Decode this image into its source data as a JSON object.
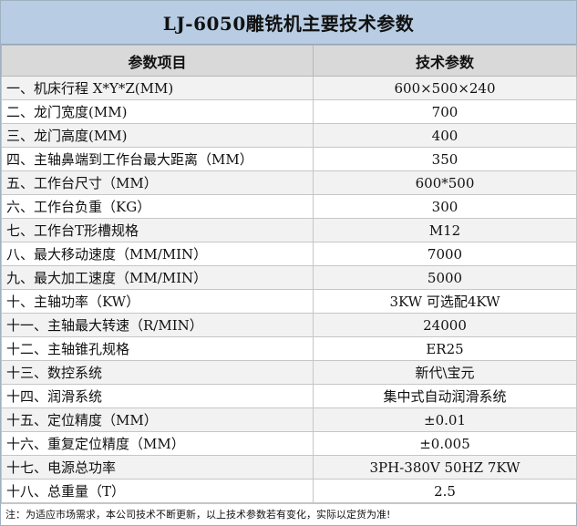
{
  "title": "LJ-6050雕铣机主要技术参数",
  "table": {
    "headers": [
      "参数项目",
      "技术参数"
    ],
    "rows": [
      {
        "name": "一、机床行程 X*Y*Z(MM)",
        "value": "600×500×240"
      },
      {
        "name": "二、龙门宽度(MM)",
        "value": "700"
      },
      {
        "name": "三、龙门高度(MM)",
        "value": "400"
      },
      {
        "name": "四、主轴鼻端到工作台最大距离（MM）",
        "value": "350"
      },
      {
        "name": "五、工作台尺寸（MM）",
        "value": "600*500"
      },
      {
        "name": "六、工作台负重（KG）",
        "value": "300"
      },
      {
        "name": "七、工作台T形槽规格",
        "value": "M12"
      },
      {
        "name": "八、最大移动速度（MM/MIN）",
        "value": "7000"
      },
      {
        "name": "九、最大加工速度（MM/MIN）",
        "value": "5000"
      },
      {
        "name": "十、主轴功率（KW）",
        "value": "3KW 可选配4KW"
      },
      {
        "name": "十一、主轴最大转速（R/MIN）",
        "value": "24000"
      },
      {
        "name": "十二、主轴锥孔规格",
        "value": "ER25"
      },
      {
        "name": "十三、数控系统",
        "value": "新代\\宝元"
      },
      {
        "name": "十四、润滑系统",
        "value": "集中式自动润滑系统"
      },
      {
        "name": "十五、定位精度（MM）",
        "value": "±0.01"
      },
      {
        "name": "十六、重复定位精度（MM）",
        "value": "±0.005"
      },
      {
        "name": "十七、电源总功率",
        "value": "3PH-380V 50HZ 7KW"
      },
      {
        "name": "十八、总重量（T）",
        "value": "2.5"
      }
    ]
  },
  "note": "注：为适应市场需求，本公司技术不断更新，以上技术参数若有变化，实际以定货为准!"
}
